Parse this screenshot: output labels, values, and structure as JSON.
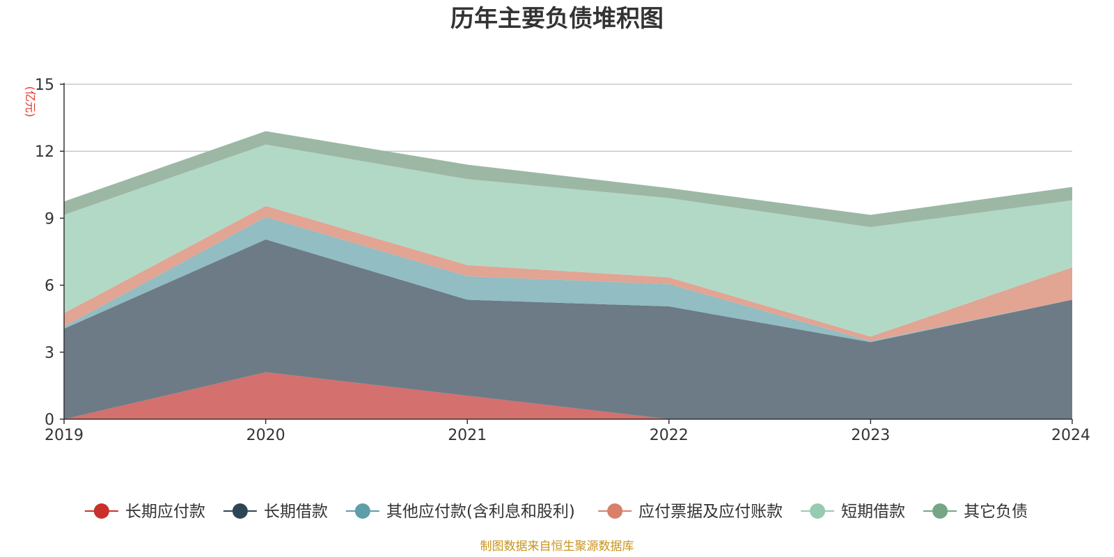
{
  "chart_data": {
    "type": "area",
    "stacked": true,
    "title": "历年主要负债堆积图",
    "y_unit": "(亿元)",
    "x": [
      "2019",
      "2020",
      "2021",
      "2022",
      "2023",
      "2024"
    ],
    "ylim": [
      0,
      15
    ],
    "yticks": [
      "0",
      "3",
      "6",
      "9",
      "12",
      "15"
    ],
    "grid": true,
    "legend_position": "bottom",
    "series": [
      {
        "name": "长期应付款",
        "values": [
          0.0,
          2.1,
          1.05,
          0.0,
          0.0,
          0.0
        ],
        "color": "#d4706e",
        "legend_color": "#c9302c"
      },
      {
        "name": "长期借款",
        "values": [
          4.05,
          5.95,
          4.3,
          5.05,
          3.45,
          5.35
        ],
        "color": "#6d7b86",
        "legend_color": "#2e4556"
      },
      {
        "name": "其他应付款(含利息和股利)",
        "values": [
          0.1,
          1.0,
          1.05,
          1.0,
          0.05,
          0.0
        ],
        "color": "#91bdc3",
        "legend_color": "#5e9ea8"
      },
      {
        "name": "应付票据及应付账款",
        "values": [
          0.6,
          0.5,
          0.5,
          0.3,
          0.2,
          1.45
        ],
        "color": "#e2a493",
        "legend_color": "#d9806a"
      },
      {
        "name": "短期借款",
        "values": [
          4.4,
          2.75,
          3.85,
          3.55,
          4.9,
          3.0
        ],
        "color": "#b2d9c6",
        "legend_color": "#96cbb1"
      },
      {
        "name": "其它负债",
        "values": [
          0.6,
          0.6,
          0.65,
          0.45,
          0.55,
          0.6
        ],
        "color": "#9cb8a4",
        "legend_color": "#76a686"
      }
    ]
  },
  "source_note": "制图数据来自恒生聚源数据库"
}
